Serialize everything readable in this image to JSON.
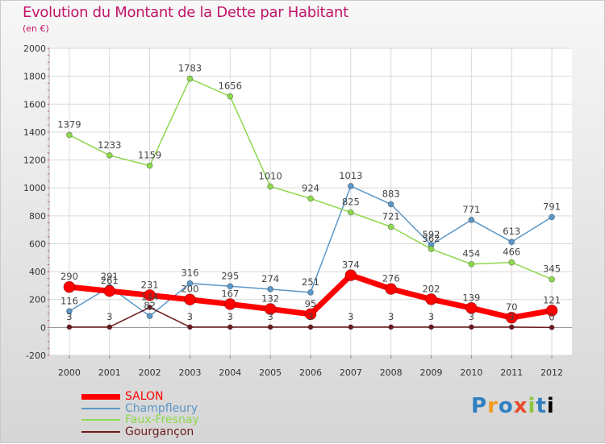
{
  "chart_data": {
    "type": "line",
    "title": "Evolution du Montant de la Dette par Habitant",
    "subtitle": "(en €)",
    "xlabel": "",
    "ylabel": "",
    "x": [
      "2000",
      "2001",
      "2002",
      "2003",
      "2004",
      "2005",
      "2006",
      "2007",
      "2008",
      "2009",
      "2010",
      "2011",
      "2012"
    ],
    "ylim": [
      -200,
      2000
    ],
    "yticks": [
      "-200",
      "0",
      "200",
      "400",
      "600",
      "800",
      "1000",
      "1200",
      "1400",
      "1600",
      "1800",
      "2000"
    ],
    "grid": true,
    "legend": "bottom-left",
    "series": [
      {
        "name": "Champfleury",
        "color": "#5b97c8",
        "values": [
          116,
          291,
          82,
          316,
          295,
          274,
          251,
          1013,
          883,
          592,
          771,
          613,
          791
        ],
        "labels": [
          "116",
          "291",
          "82",
          "316",
          "295",
          "274",
          "251",
          "1013",
          "883",
          "592",
          "771",
          "613",
          "791"
        ]
      },
      {
        "name": "Faux-Fresnay",
        "color": "#8ed84e",
        "values": [
          1379,
          1233,
          1159,
          1783,
          1656,
          1010,
          924,
          825,
          721,
          562,
          454,
          466,
          345
        ],
        "labels": [
          "1379",
          "1233",
          "1159",
          "1783",
          "1656",
          "1010",
          "924",
          "825",
          "721",
          "562",
          "454",
          "466",
          "345"
        ]
      },
      {
        "name": "Gourgançon",
        "color": "#6e1a1e",
        "values": [
          3,
          3,
          144,
          3,
          3,
          3,
          3,
          3,
          3,
          3,
          3,
          3,
          0
        ],
        "labels": [
          "3",
          "3",
          "144",
          "3",
          "3",
          "3",
          "3",
          "3",
          "3",
          "3",
          "3",
          "3",
          "0"
        ]
      },
      {
        "name": "SALON",
        "color": "#ff0000",
        "values": [
          290,
          261,
          231,
          200,
          167,
          132,
          95,
          374,
          276,
          202,
          139,
          70,
          121
        ],
        "labels": [
          "290",
          "261",
          "231",
          "200",
          "167",
          "132",
          "95",
          "374",
          "276",
          "202",
          "139",
          "70",
          "121"
        ]
      }
    ]
  },
  "logo": {
    "letters": [
      "P",
      "r",
      "o",
      "x",
      "i",
      "t",
      "i"
    ]
  }
}
